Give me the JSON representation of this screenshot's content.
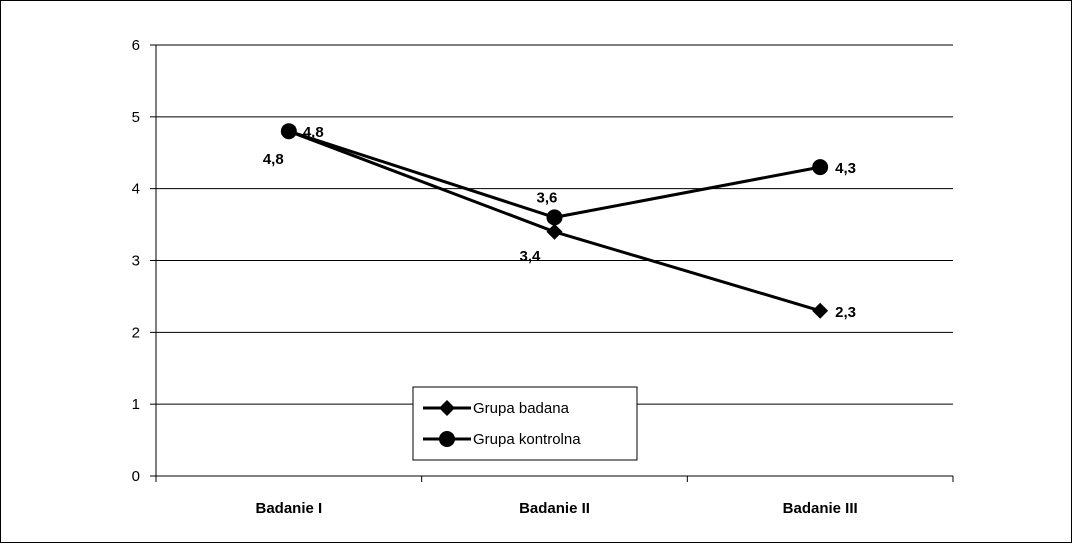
{
  "chart_data": {
    "type": "line",
    "categories": [
      "Badanie I",
      "Badanie II",
      "Badanie III"
    ],
    "series": [
      {
        "name": "Grupa badana",
        "marker": "diamond",
        "values": [
          4.8,
          3.4,
          2.3
        ],
        "labels": [
          "4,8",
          "3,4",
          "2,3"
        ]
      },
      {
        "name": "Grupa kontrolna",
        "marker": "circle",
        "values": [
          4.8,
          3.6,
          4.3
        ],
        "labels": [
          "4,8",
          "3,6",
          "4,3"
        ]
      }
    ],
    "yticks": [
      "0",
      "1",
      "2",
      "3",
      "4",
      "5",
      "6"
    ],
    "ylim": [
      0,
      6
    ],
    "grid": true,
    "legend_position": "bottom-center",
    "line_color": "#000000"
  }
}
